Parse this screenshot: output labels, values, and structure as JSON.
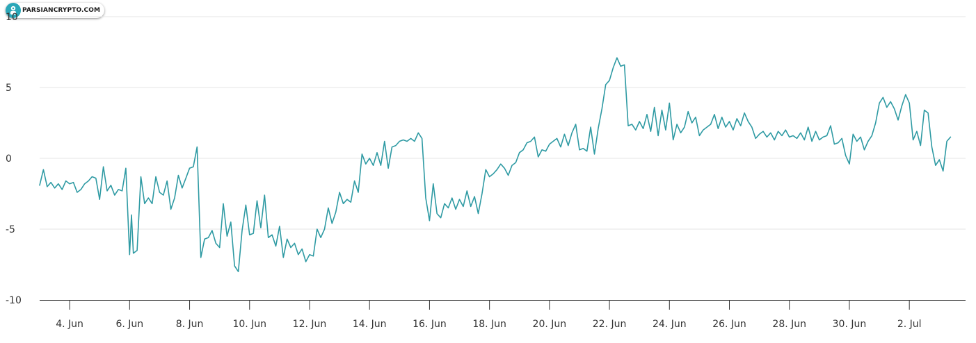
{
  "logo": {
    "text": "PARSIANCRYPTO.COM",
    "icon": "parsiancrypto-logo-icon",
    "color": "#2aa7b8"
  },
  "chart_data": {
    "type": "line",
    "title": "",
    "xlabel": "",
    "ylabel": "",
    "ylim": [
      -10,
      10
    ],
    "yticks": [
      {
        "value": -10,
        "label": "-10"
      },
      {
        "value": -5,
        "label": "-5"
      },
      {
        "value": 0,
        "label": "0"
      },
      {
        "value": 5,
        "label": "5"
      },
      {
        "value": 10,
        "label": "10"
      }
    ],
    "xlim": [
      "2023-06-03",
      "2023-07-03 21:00"
    ],
    "xticks": [
      {
        "date": "2023-06-04",
        "label": "4. Jun"
      },
      {
        "date": "2023-06-06",
        "label": "6. Jun"
      },
      {
        "date": "2023-06-08",
        "label": "8. Jun"
      },
      {
        "date": "2023-06-10",
        "label": "10. Jun"
      },
      {
        "date": "2023-06-12",
        "label": "12. Jun"
      },
      {
        "date": "2023-06-14",
        "label": "14. Jun"
      },
      {
        "date": "2023-06-16",
        "label": "16. Jun"
      },
      {
        "date": "2023-06-18",
        "label": "18. Jun"
      },
      {
        "date": "2023-06-20",
        "label": "20. Jun"
      },
      {
        "date": "2023-06-22",
        "label": "22. Jun"
      },
      {
        "date": "2023-06-24",
        "label": "24. Jun"
      },
      {
        "date": "2023-06-26",
        "label": "26. Jun"
      },
      {
        "date": "2023-06-28",
        "label": "28. Jun"
      },
      {
        "date": "2023-06-30",
        "label": "30. Jun"
      },
      {
        "date": "2023-07-02",
        "label": "2. Jul"
      }
    ],
    "grid": true,
    "line_color": "#2e9aa3",
    "series": [
      {
        "points": [
          [
            "2023-06-03 00:00",
            -1.9
          ],
          [
            "2023-06-03 03:00",
            -0.8
          ],
          [
            "2023-06-03 06:00",
            -2.0
          ],
          [
            "2023-06-03 09:00",
            -1.7
          ],
          [
            "2023-06-03 12:00",
            -2.1
          ],
          [
            "2023-06-03 15:00",
            -1.8
          ],
          [
            "2023-06-03 18:00",
            -2.2
          ],
          [
            "2023-06-03 21:00",
            -1.6
          ],
          [
            "2023-06-04 00:00",
            -1.8
          ],
          [
            "2023-06-04 03:00",
            -1.7
          ],
          [
            "2023-06-04 06:00",
            -2.4
          ],
          [
            "2023-06-04 09:00",
            -2.2
          ],
          [
            "2023-06-04 12:00",
            -1.8
          ],
          [
            "2023-06-04 15:00",
            -1.6
          ],
          [
            "2023-06-04 18:00",
            -1.3
          ],
          [
            "2023-06-04 21:00",
            -1.4
          ],
          [
            "2023-06-05 00:00",
            -2.9
          ],
          [
            "2023-06-05 03:00",
            -0.6
          ],
          [
            "2023-06-05 06:00",
            -2.3
          ],
          [
            "2023-06-05 09:00",
            -1.9
          ],
          [
            "2023-06-05 12:00",
            -2.6
          ],
          [
            "2023-06-05 15:00",
            -2.2
          ],
          [
            "2023-06-05 18:00",
            -2.3
          ],
          [
            "2023-06-05 21:00",
            -0.7
          ],
          [
            "2023-06-06 00:00",
            -6.8
          ],
          [
            "2023-06-06 01:30",
            -4.0
          ],
          [
            "2023-06-06 03:00",
            -6.7
          ],
          [
            "2023-06-06 06:00",
            -6.5
          ],
          [
            "2023-06-06 09:00",
            -1.3
          ],
          [
            "2023-06-06 12:00",
            -3.2
          ],
          [
            "2023-06-06 15:00",
            -2.8
          ],
          [
            "2023-06-06 18:00",
            -3.2
          ],
          [
            "2023-06-06 21:00",
            -1.3
          ],
          [
            "2023-06-07 00:00",
            -2.4
          ],
          [
            "2023-06-07 03:00",
            -2.6
          ],
          [
            "2023-06-07 06:00",
            -1.6
          ],
          [
            "2023-06-07 09:00",
            -3.6
          ],
          [
            "2023-06-07 12:00",
            -2.8
          ],
          [
            "2023-06-07 15:00",
            -1.2
          ],
          [
            "2023-06-07 18:00",
            -2.1
          ],
          [
            "2023-06-07 21:00",
            -1.4
          ],
          [
            "2023-06-08 00:00",
            -0.7
          ],
          [
            "2023-06-08 03:00",
            -0.6
          ],
          [
            "2023-06-08 06:00",
            0.8
          ],
          [
            "2023-06-08 09:00",
            -7.0
          ],
          [
            "2023-06-08 12:00",
            -5.7
          ],
          [
            "2023-06-08 15:00",
            -5.6
          ],
          [
            "2023-06-08 18:00",
            -5.1
          ],
          [
            "2023-06-08 21:00",
            -6.0
          ],
          [
            "2023-06-09 00:00",
            -6.3
          ],
          [
            "2023-06-09 03:00",
            -3.2
          ],
          [
            "2023-06-09 06:00",
            -5.5
          ],
          [
            "2023-06-09 09:00",
            -4.5
          ],
          [
            "2023-06-09 12:00",
            -7.6
          ],
          [
            "2023-06-09 15:00",
            -8.0
          ],
          [
            "2023-06-09 18:00",
            -5.1
          ],
          [
            "2023-06-09 21:00",
            -3.3
          ],
          [
            "2023-06-10 00:00",
            -5.4
          ],
          [
            "2023-06-10 03:00",
            -5.3
          ],
          [
            "2023-06-10 06:00",
            -3.0
          ],
          [
            "2023-06-10 09:00",
            -4.9
          ],
          [
            "2023-06-10 12:00",
            -2.6
          ],
          [
            "2023-06-10 15:00",
            -5.6
          ],
          [
            "2023-06-10 18:00",
            -5.4
          ],
          [
            "2023-06-10 21:00",
            -6.2
          ],
          [
            "2023-06-11 00:00",
            -4.8
          ],
          [
            "2023-06-11 03:00",
            -7.0
          ],
          [
            "2023-06-11 06:00",
            -5.7
          ],
          [
            "2023-06-11 09:00",
            -6.3
          ],
          [
            "2023-06-11 12:00",
            -6.0
          ],
          [
            "2023-06-11 15:00",
            -6.8
          ],
          [
            "2023-06-11 18:00",
            -6.4
          ],
          [
            "2023-06-11 21:00",
            -7.3
          ],
          [
            "2023-06-12 00:00",
            -6.8
          ],
          [
            "2023-06-12 03:00",
            -6.9
          ],
          [
            "2023-06-12 06:00",
            -5.0
          ],
          [
            "2023-06-12 09:00",
            -5.6
          ],
          [
            "2023-06-12 12:00",
            -5.0
          ],
          [
            "2023-06-12 15:00",
            -3.5
          ],
          [
            "2023-06-12 18:00",
            -4.6
          ],
          [
            "2023-06-12 21:00",
            -3.8
          ],
          [
            "2023-06-13 00:00",
            -2.4
          ],
          [
            "2023-06-13 03:00",
            -3.2
          ],
          [
            "2023-06-13 06:00",
            -2.9
          ],
          [
            "2023-06-13 09:00",
            -3.1
          ],
          [
            "2023-06-13 12:00",
            -1.6
          ],
          [
            "2023-06-13 15:00",
            -2.4
          ],
          [
            "2023-06-13 18:00",
            0.3
          ],
          [
            "2023-06-13 21:00",
            -0.4
          ],
          [
            "2023-06-14 00:00",
            0.0
          ],
          [
            "2023-06-14 03:00",
            -0.5
          ],
          [
            "2023-06-14 06:00",
            0.4
          ],
          [
            "2023-06-14 09:00",
            -0.5
          ],
          [
            "2023-06-14 12:00",
            1.2
          ],
          [
            "2023-06-14 15:00",
            -0.7
          ],
          [
            "2023-06-14 18:00",
            0.8
          ],
          [
            "2023-06-14 21:00",
            0.9
          ],
          [
            "2023-06-15 00:00",
            1.2
          ],
          [
            "2023-06-15 03:00",
            1.3
          ],
          [
            "2023-06-15 06:00",
            1.2
          ],
          [
            "2023-06-15 09:00",
            1.4
          ],
          [
            "2023-06-15 12:00",
            1.2
          ],
          [
            "2023-06-15 15:00",
            1.8
          ],
          [
            "2023-06-15 18:00",
            1.4
          ],
          [
            "2023-06-15 21:00",
            -2.8
          ],
          [
            "2023-06-16 00:00",
            -4.4
          ],
          [
            "2023-06-16 03:00",
            -1.8
          ],
          [
            "2023-06-16 06:00",
            -3.9
          ],
          [
            "2023-06-16 09:00",
            -4.2
          ],
          [
            "2023-06-16 12:00",
            -3.2
          ],
          [
            "2023-06-16 15:00",
            -3.5
          ],
          [
            "2023-06-16 18:00",
            -2.8
          ],
          [
            "2023-06-16 21:00",
            -3.6
          ],
          [
            "2023-06-17 00:00",
            -2.9
          ],
          [
            "2023-06-17 03:00",
            -3.4
          ],
          [
            "2023-06-17 06:00",
            -2.3
          ],
          [
            "2023-06-17 09:00",
            -3.4
          ],
          [
            "2023-06-17 12:00",
            -2.7
          ],
          [
            "2023-06-17 15:00",
            -3.9
          ],
          [
            "2023-06-17 18:00",
            -2.5
          ],
          [
            "2023-06-17 21:00",
            -0.8
          ],
          [
            "2023-06-18 00:00",
            -1.3
          ],
          [
            "2023-06-18 03:00",
            -1.1
          ],
          [
            "2023-06-18 06:00",
            -0.8
          ],
          [
            "2023-06-18 09:00",
            -0.4
          ],
          [
            "2023-06-18 12:00",
            -0.7
          ],
          [
            "2023-06-18 15:00",
            -1.2
          ],
          [
            "2023-06-18 18:00",
            -0.5
          ],
          [
            "2023-06-18 21:00",
            -0.3
          ],
          [
            "2023-06-19 00:00",
            0.4
          ],
          [
            "2023-06-19 03:00",
            0.6
          ],
          [
            "2023-06-19 06:00",
            1.1
          ],
          [
            "2023-06-19 09:00",
            1.2
          ],
          [
            "2023-06-19 12:00",
            1.5
          ],
          [
            "2023-06-19 15:00",
            0.1
          ],
          [
            "2023-06-19 18:00",
            0.6
          ],
          [
            "2023-06-19 21:00",
            0.5
          ],
          [
            "2023-06-20 00:00",
            1.0
          ],
          [
            "2023-06-20 03:00",
            1.2
          ],
          [
            "2023-06-20 06:00",
            1.4
          ],
          [
            "2023-06-20 09:00",
            0.8
          ],
          [
            "2023-06-20 12:00",
            1.7
          ],
          [
            "2023-06-20 15:00",
            0.9
          ],
          [
            "2023-06-20 18:00",
            1.8
          ],
          [
            "2023-06-20 21:00",
            2.4
          ],
          [
            "2023-06-21 00:00",
            0.6
          ],
          [
            "2023-06-21 03:00",
            0.7
          ],
          [
            "2023-06-21 06:00",
            0.5
          ],
          [
            "2023-06-21 09:00",
            2.2
          ],
          [
            "2023-06-21 12:00",
            0.3
          ],
          [
            "2023-06-21 15:00",
            2.1
          ],
          [
            "2023-06-21 18:00",
            3.5
          ],
          [
            "2023-06-21 21:00",
            5.2
          ],
          [
            "2023-06-22 00:00",
            5.5
          ],
          [
            "2023-06-22 03:00",
            6.4
          ],
          [
            "2023-06-22 06:00",
            7.1
          ],
          [
            "2023-06-22 09:00",
            6.5
          ],
          [
            "2023-06-22 12:00",
            6.6
          ],
          [
            "2023-06-22 15:00",
            2.3
          ],
          [
            "2023-06-22 18:00",
            2.4
          ],
          [
            "2023-06-22 21:00",
            2.0
          ],
          [
            "2023-06-23 00:00",
            2.6
          ],
          [
            "2023-06-23 03:00",
            2.1
          ],
          [
            "2023-06-23 06:00",
            3.1
          ],
          [
            "2023-06-23 09:00",
            1.9
          ],
          [
            "2023-06-23 12:00",
            3.6
          ],
          [
            "2023-06-23 15:00",
            1.6
          ],
          [
            "2023-06-23 18:00",
            3.4
          ],
          [
            "2023-06-23 21:00",
            2.0
          ],
          [
            "2023-06-24 00:00",
            3.9
          ],
          [
            "2023-06-24 03:00",
            1.3
          ],
          [
            "2023-06-24 06:00",
            2.4
          ],
          [
            "2023-06-24 09:00",
            1.8
          ],
          [
            "2023-06-24 12:00",
            2.2
          ],
          [
            "2023-06-24 15:00",
            3.3
          ],
          [
            "2023-06-24 18:00",
            2.5
          ],
          [
            "2023-06-24 21:00",
            2.9
          ],
          [
            "2023-06-25 00:00",
            1.6
          ],
          [
            "2023-06-25 03:00",
            2.0
          ],
          [
            "2023-06-25 06:00",
            2.2
          ],
          [
            "2023-06-25 09:00",
            2.4
          ],
          [
            "2023-06-25 12:00",
            3.1
          ],
          [
            "2023-06-25 15:00",
            2.1
          ],
          [
            "2023-06-25 18:00",
            2.9
          ],
          [
            "2023-06-25 21:00",
            2.2
          ],
          [
            "2023-06-26 00:00",
            2.6
          ],
          [
            "2023-06-26 03:00",
            2.0
          ],
          [
            "2023-06-26 06:00",
            2.8
          ],
          [
            "2023-06-26 09:00",
            2.3
          ],
          [
            "2023-06-26 12:00",
            3.2
          ],
          [
            "2023-06-26 15:00",
            2.6
          ],
          [
            "2023-06-26 18:00",
            2.2
          ],
          [
            "2023-06-26 21:00",
            1.4
          ],
          [
            "2023-06-27 00:00",
            1.7
          ],
          [
            "2023-06-27 03:00",
            1.9
          ],
          [
            "2023-06-27 06:00",
            1.5
          ],
          [
            "2023-06-27 09:00",
            1.8
          ],
          [
            "2023-06-27 12:00",
            1.3
          ],
          [
            "2023-06-27 15:00",
            1.9
          ],
          [
            "2023-06-27 18:00",
            1.6
          ],
          [
            "2023-06-27 21:00",
            2.0
          ],
          [
            "2023-06-28 00:00",
            1.5
          ],
          [
            "2023-06-28 03:00",
            1.6
          ],
          [
            "2023-06-28 06:00",
            1.4
          ],
          [
            "2023-06-28 09:00",
            1.8
          ],
          [
            "2023-06-28 12:00",
            1.3
          ],
          [
            "2023-06-28 15:00",
            2.2
          ],
          [
            "2023-06-28 18:00",
            1.2
          ],
          [
            "2023-06-28 21:00",
            1.9
          ],
          [
            "2023-06-29 00:00",
            1.3
          ],
          [
            "2023-06-29 03:00",
            1.5
          ],
          [
            "2023-06-29 06:00",
            1.6
          ],
          [
            "2023-06-29 09:00",
            2.3
          ],
          [
            "2023-06-29 12:00",
            1.0
          ],
          [
            "2023-06-29 15:00",
            1.1
          ],
          [
            "2023-06-29 18:00",
            1.4
          ],
          [
            "2023-06-29 21:00",
            0.2
          ],
          [
            "2023-06-30 00:00",
            -0.4
          ],
          [
            "2023-06-30 03:00",
            1.7
          ],
          [
            "2023-06-30 06:00",
            1.2
          ],
          [
            "2023-06-30 09:00",
            1.5
          ],
          [
            "2023-06-30 12:00",
            0.6
          ],
          [
            "2023-06-30 15:00",
            1.2
          ],
          [
            "2023-06-30 18:00",
            1.6
          ],
          [
            "2023-06-30 21:00",
            2.5
          ],
          [
            "2023-07-01 00:00",
            3.9
          ],
          [
            "2023-07-01 03:00",
            4.3
          ],
          [
            "2023-07-01 06:00",
            3.6
          ],
          [
            "2023-07-01 09:00",
            4.0
          ],
          [
            "2023-07-01 12:00",
            3.5
          ],
          [
            "2023-07-01 15:00",
            2.7
          ],
          [
            "2023-07-01 18:00",
            3.7
          ],
          [
            "2023-07-01 21:00",
            4.5
          ],
          [
            "2023-07-02 00:00",
            3.9
          ],
          [
            "2023-07-02 03:00",
            1.3
          ],
          [
            "2023-07-02 06:00",
            1.9
          ],
          [
            "2023-07-02 09:00",
            0.9
          ],
          [
            "2023-07-02 12:00",
            3.4
          ],
          [
            "2023-07-02 15:00",
            3.2
          ],
          [
            "2023-07-02 18:00",
            0.8
          ],
          [
            "2023-07-02 21:00",
            -0.5
          ],
          [
            "2023-07-03 00:00",
            -0.1
          ],
          [
            "2023-07-03 03:00",
            -0.9
          ],
          [
            "2023-07-03 06:00",
            1.2
          ],
          [
            "2023-07-03 09:00",
            1.5
          ]
        ]
      }
    ]
  }
}
